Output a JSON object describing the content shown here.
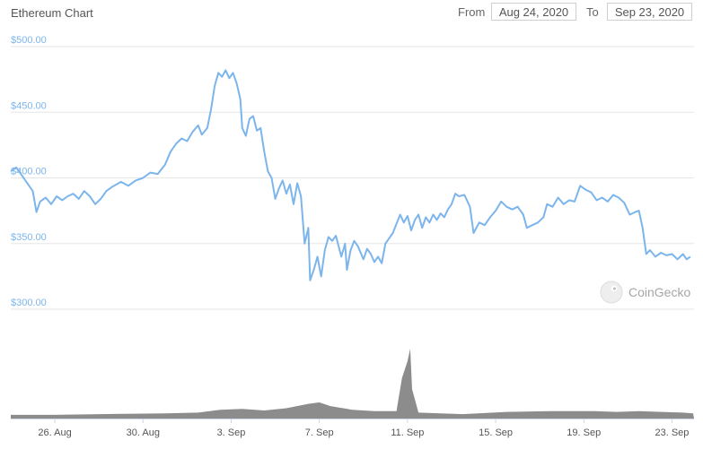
{
  "header": {
    "title": "Ethereum Chart",
    "from_label": "From",
    "from_value": "Aug 24, 2020",
    "to_label": "To",
    "to_value": "Sep 23, 2020"
  },
  "credit": "CoinGecko",
  "chart_data": {
    "type": "line",
    "title": "Ethereum Chart",
    "xlabel": "",
    "ylabel": "",
    "ylim": [
      300,
      500
    ],
    "xlim": [
      "2020-08-24",
      "2020-09-23"
    ],
    "grid": true,
    "legend": "none",
    "colors": {
      "line": "#7cb5ec",
      "volume": "#8c8c8c",
      "grid": "#e6e6e6"
    },
    "y_ticks": [
      "$300.00",
      "$350.00",
      "$400.00",
      "$450.00",
      "$500.00"
    ],
    "y_tick_values": [
      300,
      350,
      400,
      450,
      500
    ],
    "x_ticks": [
      "26. Aug",
      "30. Aug",
      "3. Sep",
      "7. Sep",
      "11. Sep",
      "15. Sep",
      "19. Sep",
      "23. Sep"
    ],
    "x_tick_dates": [
      "2020-08-26",
      "2020-08-30",
      "2020-09-03",
      "2020-09-07",
      "2020-09-11",
      "2020-09-15",
      "2020-09-19",
      "2020-09-23"
    ],
    "series": [
      {
        "values": [
          [
            "2020-08-24T00:00",
            405
          ],
          [
            "2020-08-24T06:00",
            408
          ],
          [
            "2020-08-24T12:00",
            402
          ],
          [
            "2020-08-24T18:00",
            396
          ],
          [
            "2020-08-25T00:00",
            390
          ],
          [
            "2020-08-25T04:00",
            374
          ],
          [
            "2020-08-25T08:00",
            382
          ],
          [
            "2020-08-25T14:00",
            385
          ],
          [
            "2020-08-25T20:00",
            380
          ],
          [
            "2020-08-26T02:00",
            386
          ],
          [
            "2020-08-26T08:00",
            383
          ],
          [
            "2020-08-26T14:00",
            386
          ],
          [
            "2020-08-26T20:00",
            388
          ],
          [
            "2020-08-27T02:00",
            384
          ],
          [
            "2020-08-27T08:00",
            390
          ],
          [
            "2020-08-27T14:00",
            386
          ],
          [
            "2020-08-27T20:00",
            380
          ],
          [
            "2020-08-28T02:00",
            384
          ],
          [
            "2020-08-28T08:00",
            390
          ],
          [
            "2020-08-28T14:00",
            393
          ],
          [
            "2020-08-29T00:00",
            397
          ],
          [
            "2020-08-29T08:00",
            394
          ],
          [
            "2020-08-29T16:00",
            398
          ],
          [
            "2020-08-30T00:00",
            400
          ],
          [
            "2020-08-30T08:00",
            404
          ],
          [
            "2020-08-30T16:00",
            403
          ],
          [
            "2020-08-31T00:00",
            410
          ],
          [
            "2020-08-31T06:00",
            420
          ],
          [
            "2020-08-31T12:00",
            426
          ],
          [
            "2020-08-31T18:00",
            430
          ],
          [
            "2020-09-01T00:00",
            428
          ],
          [
            "2020-09-01T06:00",
            435
          ],
          [
            "2020-09-01T12:00",
            440
          ],
          [
            "2020-09-01T16:00",
            433
          ],
          [
            "2020-09-01T22:00",
            438
          ],
          [
            "2020-09-02T02:00",
            452
          ],
          [
            "2020-09-02T06:00",
            470
          ],
          [
            "2020-09-02T10:00",
            480
          ],
          [
            "2020-09-02T14:00",
            477
          ],
          [
            "2020-09-02T18:00",
            482
          ],
          [
            "2020-09-02T22:00",
            476
          ],
          [
            "2020-09-03T02:00",
            480
          ],
          [
            "2020-09-03T06:00",
            472
          ],
          [
            "2020-09-03T10:00",
            460
          ],
          [
            "2020-09-03T12:00",
            438
          ],
          [
            "2020-09-03T16:00",
            432
          ],
          [
            "2020-09-03T20:00",
            445
          ],
          [
            "2020-09-04T00:00",
            447
          ],
          [
            "2020-09-04T04:00",
            436
          ],
          [
            "2020-09-04T08:00",
            438
          ],
          [
            "2020-09-04T12:00",
            420
          ],
          [
            "2020-09-04T16:00",
            405
          ],
          [
            "2020-09-04T20:00",
            400
          ],
          [
            "2020-09-05T00:00",
            384
          ],
          [
            "2020-09-05T04:00",
            392
          ],
          [
            "2020-09-05T08:00",
            398
          ],
          [
            "2020-09-05T12:00",
            388
          ],
          [
            "2020-09-05T16:00",
            395
          ],
          [
            "2020-09-05T20:00",
            380
          ],
          [
            "2020-09-06T00:00",
            396
          ],
          [
            "2020-09-06T04:00",
            386
          ],
          [
            "2020-09-06T08:00",
            350
          ],
          [
            "2020-09-06T12:00",
            362
          ],
          [
            "2020-09-06T14:00",
            322
          ],
          [
            "2020-09-06T18:00",
            330
          ],
          [
            "2020-09-06T22:00",
            340
          ],
          [
            "2020-09-07T02:00",
            325
          ],
          [
            "2020-09-07T06:00",
            345
          ],
          [
            "2020-09-07T10:00",
            355
          ],
          [
            "2020-09-07T14:00",
            352
          ],
          [
            "2020-09-07T18:00",
            356
          ],
          [
            "2020-09-08T00:00",
            340
          ],
          [
            "2020-09-08T04:00",
            350
          ],
          [
            "2020-09-08T06:00",
            330
          ],
          [
            "2020-09-08T10:00",
            345
          ],
          [
            "2020-09-08T14:00",
            352
          ],
          [
            "2020-09-08T18:00",
            348
          ],
          [
            "2020-09-09T00:00",
            338
          ],
          [
            "2020-09-09T04:00",
            346
          ],
          [
            "2020-09-09T08:00",
            342
          ],
          [
            "2020-09-09T12:00",
            336
          ],
          [
            "2020-09-09T16:00",
            340
          ],
          [
            "2020-09-09T20:00",
            335
          ],
          [
            "2020-09-10T00:00",
            350
          ],
          [
            "2020-09-10T04:00",
            354
          ],
          [
            "2020-09-10T08:00",
            358
          ],
          [
            "2020-09-10T12:00",
            365
          ],
          [
            "2020-09-10T16:00",
            372
          ],
          [
            "2020-09-10T20:00",
            366
          ],
          [
            "2020-09-11T00:00",
            371
          ],
          [
            "2020-09-11T04:00",
            360
          ],
          [
            "2020-09-11T08:00",
            368
          ],
          [
            "2020-09-11T12:00",
            372
          ],
          [
            "2020-09-11T16:00",
            362
          ],
          [
            "2020-09-11T20:00",
            370
          ],
          [
            "2020-09-12T00:00",
            366
          ],
          [
            "2020-09-12T04:00",
            372
          ],
          [
            "2020-09-12T08:00",
            368
          ],
          [
            "2020-09-12T12:00",
            373
          ],
          [
            "2020-09-12T16:00",
            370
          ],
          [
            "2020-09-12T20:00",
            376
          ],
          [
            "2020-09-13T00:00",
            380
          ],
          [
            "2020-09-13T04:00",
            388
          ],
          [
            "2020-09-13T08:00",
            386
          ],
          [
            "2020-09-13T14:00",
            387
          ],
          [
            "2020-09-13T20:00",
            378
          ],
          [
            "2020-09-14T00:00",
            358
          ],
          [
            "2020-09-14T06:00",
            366
          ],
          [
            "2020-09-14T12:00",
            364
          ],
          [
            "2020-09-14T18:00",
            370
          ],
          [
            "2020-09-15T00:00",
            375
          ],
          [
            "2020-09-15T06:00",
            382
          ],
          [
            "2020-09-15T12:00",
            378
          ],
          [
            "2020-09-15T18:00",
            376
          ],
          [
            "2020-09-16T00:00",
            378
          ],
          [
            "2020-09-16T06:00",
            372
          ],
          [
            "2020-09-16T10:00",
            362
          ],
          [
            "2020-09-16T16:00",
            364
          ],
          [
            "2020-09-16T22:00",
            366
          ],
          [
            "2020-09-17T04:00",
            370
          ],
          [
            "2020-09-17T08:00",
            380
          ],
          [
            "2020-09-17T14:00",
            378
          ],
          [
            "2020-09-17T20:00",
            385
          ],
          [
            "2020-09-18T02:00",
            380
          ],
          [
            "2020-09-18T08:00",
            383
          ],
          [
            "2020-09-18T14:00",
            382
          ],
          [
            "2020-09-18T20:00",
            394
          ],
          [
            "2020-09-19T02:00",
            391
          ],
          [
            "2020-09-19T08:00",
            389
          ],
          [
            "2020-09-19T14:00",
            383
          ],
          [
            "2020-09-19T20:00",
            385
          ],
          [
            "2020-09-20T02:00",
            382
          ],
          [
            "2020-09-20T08:00",
            387
          ],
          [
            "2020-09-20T14:00",
            385
          ],
          [
            "2020-09-20T20:00",
            381
          ],
          [
            "2020-09-21T02:00",
            372
          ],
          [
            "2020-09-21T08:00",
            374
          ],
          [
            "2020-09-21T12:00",
            375
          ],
          [
            "2020-09-21T16:00",
            362
          ],
          [
            "2020-09-21T20:00",
            342
          ],
          [
            "2020-09-22T00:00",
            345
          ],
          [
            "2020-09-22T06:00",
            340
          ],
          [
            "2020-09-22T12:00",
            343
          ],
          [
            "2020-09-22T18:00",
            341
          ],
          [
            "2020-09-23T00:00",
            342
          ],
          [
            "2020-09-23T06:00",
            338
          ],
          [
            "2020-09-23T12:00",
            342
          ],
          [
            "2020-09-23T16:00",
            338
          ],
          [
            "2020-09-23T20:00",
            340
          ]
        ]
      }
    ],
    "volume": {
      "values": [
        [
          "2020-08-24T00:00",
          0.05
        ],
        [
          "2020-08-26T00:00",
          0.05
        ],
        [
          "2020-08-28T00:00",
          0.06
        ],
        [
          "2020-08-31T00:00",
          0.07
        ],
        [
          "2020-09-01T12:00",
          0.08
        ],
        [
          "2020-09-02T12:00",
          0.12
        ],
        [
          "2020-09-03T12:00",
          0.13
        ],
        [
          "2020-09-04T12:00",
          0.11
        ],
        [
          "2020-09-05T12:00",
          0.14
        ],
        [
          "2020-09-06T12:00",
          0.2
        ],
        [
          "2020-09-07T00:00",
          0.22
        ],
        [
          "2020-09-07T12:00",
          0.17
        ],
        [
          "2020-09-08T12:00",
          0.12
        ],
        [
          "2020-09-09T12:00",
          0.1
        ],
        [
          "2020-09-10T12:00",
          0.1
        ],
        [
          "2020-09-10T18:00",
          0.55
        ],
        [
          "2020-09-11T00:00",
          0.78
        ],
        [
          "2020-09-11T03:00",
          0.95
        ],
        [
          "2020-09-11T05:00",
          0.4
        ],
        [
          "2020-09-11T12:00",
          0.08
        ],
        [
          "2020-09-12T12:00",
          0.07
        ],
        [
          "2020-09-13T12:00",
          0.06
        ],
        [
          "2020-09-15T12:00",
          0.09
        ],
        [
          "2020-09-17T12:00",
          0.1
        ],
        [
          "2020-09-19T12:00",
          0.1
        ],
        [
          "2020-09-20T12:00",
          0.09
        ],
        [
          "2020-09-21T12:00",
          0.1
        ],
        [
          "2020-09-22T12:00",
          0.09
        ],
        [
          "2020-09-23T12:00",
          0.08
        ],
        [
          "2020-09-23T23:00",
          0.07
        ]
      ]
    }
  }
}
